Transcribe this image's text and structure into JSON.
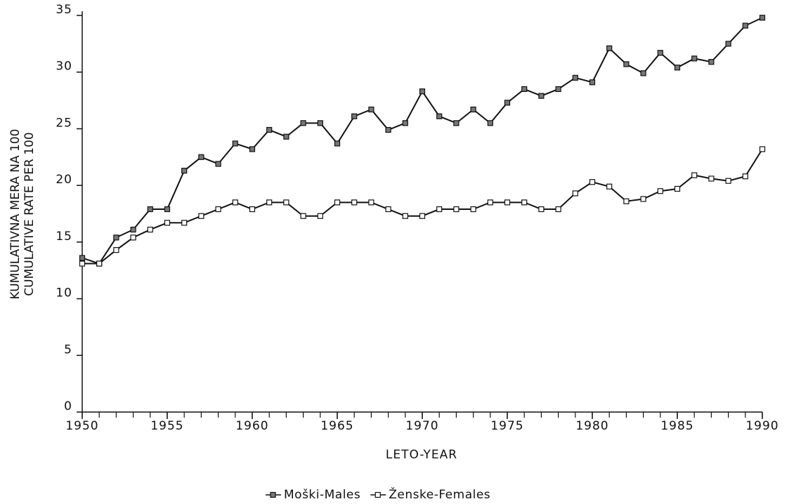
{
  "chart_data": {
    "type": "line",
    "y_label": [
      "KUMULATIVNA MERA NA 100",
      "CUMULATIVE RATE PER 100"
    ],
    "x_label": "LETO-YEAR",
    "x": [
      1950,
      1951,
      1952,
      1953,
      1954,
      1955,
      1956,
      1957,
      1958,
      1959,
      1960,
      1961,
      1962,
      1963,
      1964,
      1965,
      1966,
      1967,
      1968,
      1969,
      1970,
      1971,
      1972,
      1973,
      1974,
      1975,
      1976,
      1977,
      1978,
      1979,
      1980,
      1981,
      1982,
      1983,
      1984,
      1985,
      1986,
      1987,
      1988,
      1989,
      1990
    ],
    "series": [
      {
        "name": "Moški-Males",
        "color": "#111111",
        "marker_fill": "#777777",
        "values": [
          13.6,
          13.1,
          15.4,
          16.1,
          17.9,
          17.9,
          21.3,
          22.5,
          21.9,
          23.7,
          23.2,
          24.9,
          24.3,
          25.5,
          25.5,
          23.7,
          26.1,
          26.7,
          24.9,
          25.5,
          28.3,
          26.1,
          25.5,
          26.7,
          25.5,
          27.3,
          28.5,
          27.9,
          28.5,
          29.5,
          29.1,
          32.1,
          30.7,
          29.9,
          31.7,
          30.4,
          31.2,
          30.9,
          32.5,
          34.1,
          34.8
        ]
      },
      {
        "name": "Ženske-Females",
        "color": "#111111",
        "marker_fill": "#ffffff",
        "values": [
          13.1,
          13.1,
          14.3,
          15.4,
          16.1,
          16.7,
          16.7,
          17.3,
          17.9,
          18.5,
          17.9,
          18.5,
          18.5,
          17.3,
          17.3,
          18.5,
          18.5,
          18.5,
          17.9,
          17.3,
          17.3,
          17.9,
          17.9,
          17.9,
          18.5,
          18.5,
          18.5,
          17.9,
          17.9,
          19.3,
          20.3,
          19.9,
          18.6,
          18.8,
          19.5,
          19.7,
          20.9,
          20.6,
          20.4,
          20.8,
          23.2
        ]
      }
    ],
    "xlim": [
      1950,
      1990
    ],
    "xticks": [
      1950,
      1955,
      1960,
      1965,
      1970,
      1975,
      1980,
      1985,
      1990
    ],
    "ylim": [
      0,
      35
    ],
    "yticks": [
      0,
      5,
      10,
      15,
      20,
      25,
      30,
      35
    ],
    "grid": false,
    "legend": "bottom"
  }
}
